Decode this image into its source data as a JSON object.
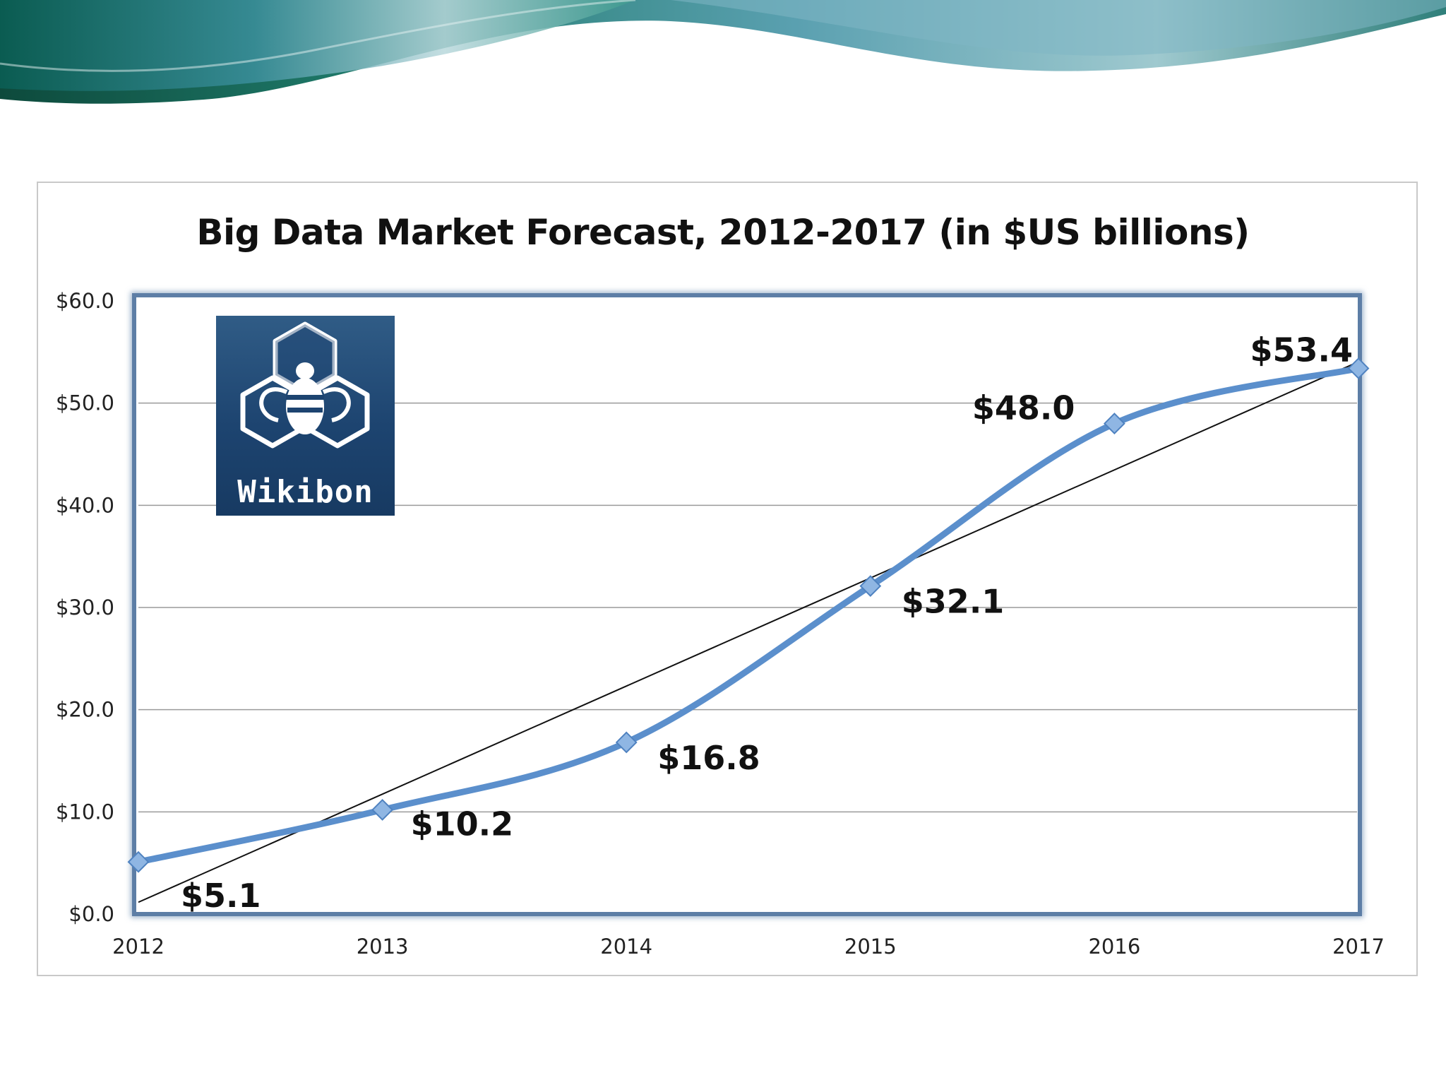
{
  "logo": {
    "text": "Wikibon",
    "icon": "bee-hexagon-icon"
  },
  "colors": {
    "series": "#5b8fcc",
    "marker": "#8fb6e3",
    "trend": "#111111",
    "plot_frame": "#5d7ea6"
  },
  "chart_data": {
    "type": "line",
    "title": "Big Data Market Forecast, 2012-2017 (in $US billions)",
    "xlabel": "",
    "ylabel": "",
    "x": [
      "2012",
      "2013",
      "2014",
      "2015",
      "2016",
      "2017"
    ],
    "series": [
      {
        "values": [
          5.1,
          10.2,
          16.8,
          32.1,
          48.0,
          53.4
        ],
        "data_labels": [
          "$5.1",
          "$10.2",
          "$16.8",
          "$32.1",
          "$48.0",
          "$53.4"
        ],
        "smooth": true,
        "marker": "diamond"
      }
    ],
    "trendline": {
      "type": "linear"
    },
    "ylim": [
      0,
      60
    ],
    "yticks": [
      0,
      10,
      20,
      30,
      40,
      50,
      60
    ],
    "ytick_labels": [
      "$0.0",
      "$10.0",
      "$20.0",
      "$30.0",
      "$40.0",
      "$50.0",
      "$60.0"
    ],
    "grid": true,
    "legend": "none"
  }
}
